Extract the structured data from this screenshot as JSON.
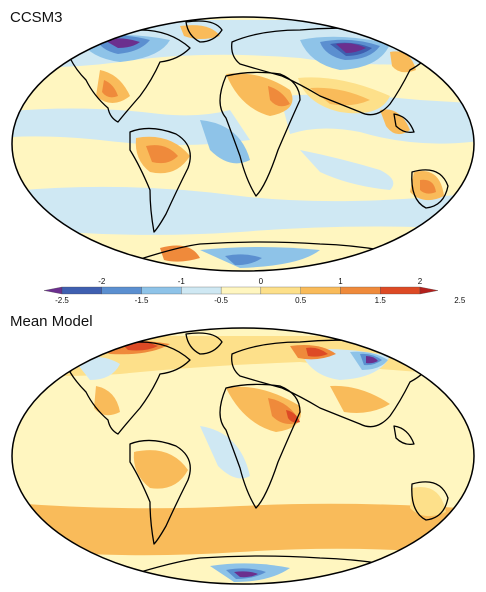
{
  "panels": [
    {
      "title": "CCSM3"
    },
    {
      "title": "Mean Model"
    }
  ],
  "colorbar": {
    "colors": [
      "#6b2f8e",
      "#3f5fb0",
      "#5b8fd0",
      "#8ec3e8",
      "#cfe8f3",
      "#fff6c0",
      "#fde08a",
      "#f9bb5a",
      "#ef8a3b",
      "#dd4a25",
      "#b4201c"
    ],
    "upper_ticks": [
      "-2",
      "-1",
      "0",
      "1",
      "2"
    ],
    "lower_ticks": [
      "-2.5",
      "-1.5",
      "-0.5",
      "0.5",
      "1.5",
      "2.5"
    ]
  }
}
